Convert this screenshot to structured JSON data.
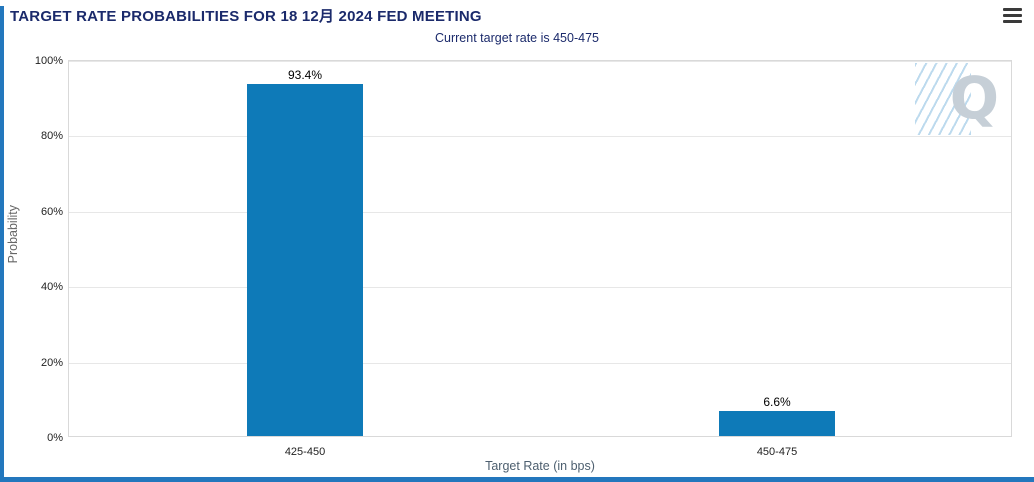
{
  "header": {
    "title": "TARGET RATE PROBABILITIES FOR 18 12月 2024 FED MEETING"
  },
  "subtitle": "Current target rate is 450-475",
  "chart_data": {
    "type": "bar",
    "title": "TARGET RATE PROBABILITIES FOR 18 12月 2024 FED MEETING",
    "subtitle": "Current target rate is 450-475",
    "categories": [
      "425-450",
      "450-475"
    ],
    "values": [
      93.4,
      6.6
    ],
    "value_labels": [
      "93.4%",
      "6.6%"
    ],
    "xlabel": "Target Rate (in bps)",
    "ylabel": "Probability",
    "ylim": [
      0,
      100
    ],
    "ytick_values": [
      0,
      20,
      40,
      60,
      80,
      100
    ],
    "ytick_labels": [
      "0%",
      "20%",
      "40%",
      "60%",
      "80%",
      "100%"
    ],
    "grid": true,
    "legend_position": "none",
    "bar_color": "#0e7ab8",
    "watermark": "Q"
  },
  "colors": {
    "title_text": "#1b2a6b",
    "subtitle_text": "#1b2a6b",
    "accent_strip": "#2377bd",
    "bar": "#0e7ab8",
    "gridline": "#e7e7e7",
    "axis_title": "#4d5f6f",
    "watermark": "#c6cfd7"
  }
}
